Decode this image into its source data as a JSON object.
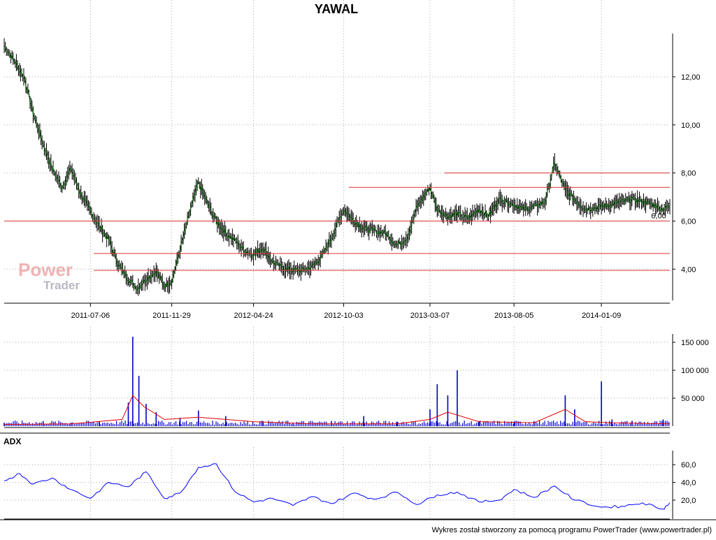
{
  "chart_data": [
    {
      "type": "line",
      "title": "YAWAL",
      "x_tick_labels": [
        "2011-07-06",
        "2011-11-29",
        "2012-04-24",
        "2012-10-03",
        "2013-03-07",
        "2013-08-05",
        "2014-01-09"
      ],
      "y_tick_labels": [
        "4,00",
        "6,00",
        "8,00",
        "10,00",
        "12,00"
      ],
      "ylim": [
        2.7,
        13.8
      ],
      "grid": true,
      "series": [
        {
          "x": [
            "2011-02-01",
            "2011-02-21",
            "2011-03-10",
            "2011-03-25",
            "2011-04-12",
            "2011-04-28",
            "2011-05-16",
            "2011-06-01",
            "2011-06-17",
            "2011-07-06",
            "2011-07-22",
            "2011-08-08",
            "2011-08-25",
            "2011-09-12",
            "2011-09-28",
            "2011-10-14",
            "2011-11-01",
            "2011-11-16",
            "2011-11-29",
            "2011-12-14",
            "2012-01-02",
            "2012-01-16",
            "2012-01-31",
            "2012-02-17",
            "2012-03-05",
            "2012-03-21",
            "2012-04-06",
            "2012-04-24",
            "2012-05-11",
            "2012-05-28",
            "2012-06-15",
            "2012-07-04",
            "2012-07-20",
            "2012-08-07",
            "2012-08-24",
            "2012-09-11",
            "2012-10-03",
            "2012-10-22",
            "2012-11-08",
            "2012-11-27",
            "2012-12-17",
            "2013-01-07",
            "2013-01-25",
            "2013-02-12",
            "2013-03-07",
            "2013-03-20",
            "2013-04-08",
            "2013-04-25",
            "2013-05-15",
            "2013-06-03",
            "2013-06-20",
            "2013-07-09",
            "2013-08-05",
            "2013-08-22",
            "2013-09-10",
            "2013-09-30",
            "2013-10-17",
            "2013-11-05",
            "2013-11-22",
            "2013-12-11",
            "2014-01-09",
            "2014-01-28",
            "2014-02-14",
            "2014-03-05",
            "2014-03-24",
            "2014-04-10",
            "2014-04-30",
            "2014-05-12"
          ],
          "values": [
            13.3,
            12.6,
            11.9,
            10.5,
            9.2,
            8.2,
            7.4,
            8.2,
            7.2,
            6.4,
            5.8,
            5.2,
            4.2,
            3.6,
            3.2,
            3.6,
            3.9,
            3.3,
            3.5,
            4.8,
            6.5,
            7.6,
            6.8,
            6.0,
            5.5,
            5.2,
            4.8,
            4.6,
            4.9,
            4.3,
            4.05,
            3.95,
            3.95,
            4.1,
            4.5,
            5.3,
            6.5,
            6.0,
            5.7,
            5.6,
            5.5,
            5.0,
            5.3,
            6.6,
            7.4,
            6.5,
            6.2,
            6.3,
            6.1,
            6.5,
            6.2,
            6.9,
            6.7,
            6.5,
            6.6,
            6.8,
            8.4,
            7.3,
            6.9,
            6.5,
            6.6,
            6.7,
            6.8,
            6.9,
            6.8,
            6.7,
            6.5,
            6.6
          ]
        }
      ],
      "horizontal_levels": [
        8.0,
        7.4,
        6.0,
        4.65,
        3.95
      ],
      "level_label": "6,00"
    },
    {
      "type": "bar",
      "y_tick_labels": [
        "50 000",
        "100 000",
        "150 000"
      ],
      "ylim": [
        0,
        165000
      ],
      "grid": true,
      "series": [
        {
          "x": [
            "2011-02-01",
            "2011-04-12",
            "2011-06-01",
            "2011-07-22",
            "2011-09-12",
            "2011-09-20",
            "2011-10-01",
            "2011-10-14",
            "2011-11-01",
            "2011-12-14",
            "2012-01-16",
            "2012-03-05",
            "2012-05-11",
            "2012-07-04",
            "2012-09-11",
            "2012-11-08",
            "2013-01-07",
            "2013-03-07",
            "2013-03-20",
            "2013-04-08",
            "2013-04-25",
            "2013-06-03",
            "2013-08-05",
            "2013-09-10",
            "2013-11-05",
            "2013-11-22",
            "2014-01-09",
            "2014-01-28",
            "2014-03-05",
            "2014-04-30"
          ],
          "values": [
            6000,
            9000,
            6000,
            9000,
            42000,
            160000,
            90000,
            40000,
            25000,
            15000,
            28000,
            18000,
            9000,
            6000,
            9000,
            18000,
            8000,
            30000,
            75000,
            55000,
            100000,
            9000,
            8000,
            9000,
            55000,
            30000,
            80000,
            12000,
            9000,
            12000
          ]
        },
        {
          "x": [
            "2011-02-01",
            "2011-06-01",
            "2011-09-01",
            "2011-09-20",
            "2011-10-10",
            "2011-11-16",
            "2012-01-16",
            "2012-04-24",
            "2012-08-07",
            "2013-01-07",
            "2013-03-07",
            "2013-04-08",
            "2013-06-03",
            "2013-09-10",
            "2013-11-05",
            "2013-12-11",
            "2014-01-28",
            "2014-05-12"
          ],
          "values": [
            3000,
            4000,
            12000,
            55000,
            35000,
            12000,
            16000,
            8000,
            4000,
            4000,
            12000,
            25000,
            8000,
            6000,
            30000,
            8000,
            6000,
            4000
          ]
        }
      ]
    },
    {
      "type": "line",
      "title": "ADX",
      "y_tick_labels": [
        "20,0",
        "40,0",
        "60,0"
      ],
      "ylim": [
        5,
        68
      ],
      "grid": true,
      "series": [
        {
          "x": [
            "2011-02-01",
            "2011-03-01",
            "2011-03-25",
            "2011-04-28",
            "2011-06-01",
            "2011-07-06",
            "2011-08-08",
            "2011-09-12",
            "2011-10-14",
            "2011-11-16",
            "2011-12-14",
            "2012-01-16",
            "2012-02-17",
            "2012-03-21",
            "2012-04-24",
            "2012-05-28",
            "2012-07-04",
            "2012-08-07",
            "2012-09-11",
            "2012-10-22",
            "2012-11-27",
            "2013-01-07",
            "2013-02-12",
            "2013-03-20",
            "2013-04-25",
            "2013-06-03",
            "2013-07-09",
            "2013-08-05",
            "2013-09-10",
            "2013-10-17",
            "2013-11-22",
            "2014-01-09",
            "2014-02-14",
            "2014-03-24",
            "2014-04-30",
            "2014-05-12"
          ],
          "values": [
            42,
            50,
            38,
            45,
            32,
            22,
            40,
            35,
            52,
            22,
            28,
            57,
            61,
            30,
            18,
            22,
            14,
            24,
            16,
            28,
            21,
            29,
            15,
            26,
            29,
            18,
            20,
            32,
            23,
            36,
            20,
            12,
            13,
            17,
            10,
            17
          ]
        }
      ]
    }
  ],
  "footer": "Wykres został stworzony za pomocą programu PowerTrader (www.powertrader.pl)",
  "watermark": {
    "power": "Power",
    "trader": "Trader"
  },
  "colors": {
    "price_line": "#006400",
    "volume_bar": "#0000cc",
    "volume_avg": "#e00000",
    "adx_line": "#0000ff",
    "level_line": "#e03030"
  }
}
